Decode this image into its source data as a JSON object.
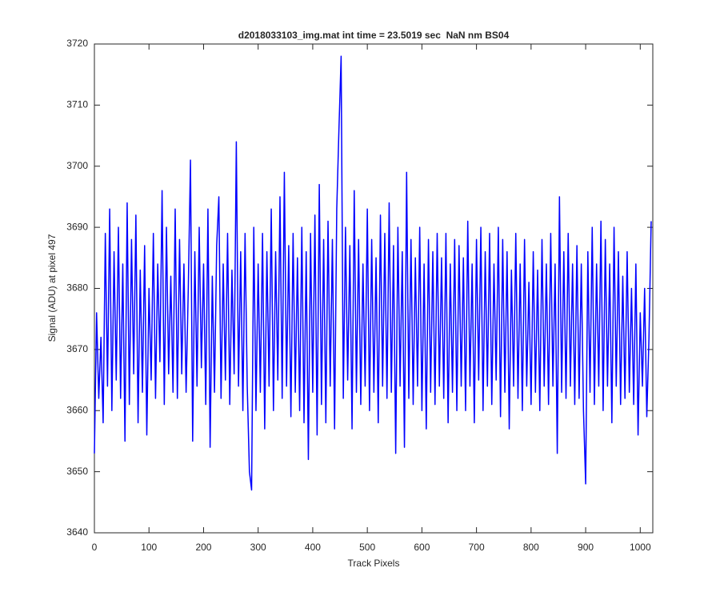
{
  "chart_data": {
    "type": "line",
    "title": "d2018033103_img.mat int time = 23.5019 sec  NaN nm BS04",
    "xlabel": "Track Pixels",
    "ylabel": "Signal (ADU) at pixel 497",
    "color": "#0000ff",
    "x": [
      0,
      4,
      8,
      12,
      16,
      20,
      24,
      28,
      32,
      36,
      40,
      44,
      48,
      52,
      56,
      60,
      64,
      68,
      72,
      76,
      80,
      84,
      88,
      92,
      96,
      100,
      104,
      108,
      112,
      116,
      120,
      124,
      128,
      132,
      136,
      140,
      144,
      148,
      152,
      156,
      160,
      164,
      168,
      172,
      176,
      180,
      184,
      188,
      192,
      196,
      200,
      204,
      208,
      212,
      216,
      220,
      224,
      228,
      232,
      236,
      240,
      244,
      248,
      252,
      256,
      260,
      264,
      268,
      272,
      276,
      280,
      284,
      288,
      292,
      296,
      300,
      304,
      308,
      312,
      316,
      320,
      324,
      328,
      332,
      336,
      340,
      344,
      348,
      352,
      356,
      360,
      364,
      368,
      372,
      376,
      380,
      384,
      388,
      392,
      396,
      400,
      404,
      408,
      412,
      416,
      420,
      424,
      428,
      432,
      436,
      440,
      444,
      448,
      452,
      456,
      460,
      464,
      468,
      472,
      476,
      480,
      484,
      488,
      492,
      496,
      500,
      504,
      508,
      512,
      516,
      520,
      524,
      528,
      532,
      536,
      540,
      544,
      548,
      552,
      556,
      560,
      564,
      568,
      572,
      576,
      580,
      584,
      588,
      592,
      596,
      600,
      604,
      608,
      612,
      616,
      620,
      624,
      628,
      632,
      636,
      640,
      644,
      648,
      652,
      656,
      660,
      664,
      668,
      672,
      676,
      680,
      684,
      688,
      692,
      696,
      700,
      704,
      708,
      712,
      716,
      720,
      724,
      728,
      732,
      736,
      740,
      744,
      748,
      752,
      756,
      760,
      764,
      768,
      772,
      776,
      780,
      784,
      788,
      792,
      796,
      800,
      804,
      808,
      812,
      816,
      820,
      824,
      828,
      832,
      836,
      840,
      844,
      848,
      852,
      856,
      860,
      864,
      868,
      872,
      876,
      880,
      884,
      888,
      892,
      896,
      900,
      904,
      908,
      912,
      916,
      920,
      924,
      928,
      932,
      936,
      940,
      944,
      948,
      952,
      956,
      960,
      964,
      968,
      972,
      976,
      980,
      984,
      988,
      992,
      996,
      1000,
      1004,
      1008,
      1012,
      1016,
      1020
    ],
    "values": [
      3653,
      3676,
      3662,
      3672,
      3658,
      3689,
      3664,
      3693,
      3660,
      3686,
      3665,
      3690,
      3662,
      3684,
      3655,
      3694,
      3661,
      3688,
      3666,
      3692,
      3658,
      3683,
      3663,
      3687,
      3656,
      3680,
      3665,
      3689,
      3662,
      3684,
      3668,
      3696,
      3661,
      3690,
      3666,
      3682,
      3663,
      3693,
      3662,
      3688,
      3666,
      3684,
      3663,
      3680,
      3701,
      3655,
      3686,
      3664,
      3690,
      3667,
      3684,
      3661,
      3693,
      3654,
      3682,
      3663,
      3687,
      3695,
      3662,
      3684,
      3665,
      3689,
      3661,
      3683,
      3666,
      3704,
      3664,
      3686,
      3660,
      3689,
      3664,
      3650,
      3647,
      3690,
      3660,
      3684,
      3663,
      3689,
      3657,
      3686,
      3664,
      3693,
      3660,
      3686,
      3665,
      3695,
      3662,
      3699,
      3664,
      3687,
      3659,
      3689,
      3663,
      3685,
      3660,
      3690,
      3658,
      3686,
      3652,
      3689,
      3663,
      3692,
      3656,
      3697,
      3661,
      3688,
      3658,
      3691,
      3664,
      3688,
      3657,
      3693,
      3706,
      3718,
      3662,
      3690,
      3665,
      3687,
      3657,
      3696,
      3663,
      3688,
      3661,
      3684,
      3664,
      3693,
      3660,
      3688,
      3663,
      3685,
      3658,
      3692,
      3664,
      3689,
      3662,
      3694,
      3663,
      3687,
      3653,
      3690,
      3664,
      3686,
      3654,
      3699,
      3662,
      3688,
      3661,
      3685,
      3664,
      3690,
      3660,
      3684,
      3657,
      3688,
      3663,
      3686,
      3661,
      3689,
      3664,
      3685,
      3662,
      3689,
      3658,
      3684,
      3663,
      3688,
      3660,
      3687,
      3664,
      3685,
      3660,
      3691,
      3664,
      3684,
      3658,
      3688,
      3665,
      3690,
      3660,
      3686,
      3664,
      3689,
      3661,
      3684,
      3665,
      3690,
      3659,
      3688,
      3663,
      3686,
      3657,
      3683,
      3664,
      3689,
      3662,
      3684,
      3660,
      3688,
      3664,
      3681,
      3661,
      3686,
      3663,
      3683,
      3660,
      3688,
      3664,
      3684,
      3661,
      3689,
      3664,
      3684,
      3653,
      3695,
      3663,
      3686,
      3662,
      3689,
      3664,
      3684,
      3661,
      3687,
      3662,
      3684,
      3660,
      3648,
      3686,
      3663,
      3690,
      3661,
      3684,
      3664,
      3691,
      3660,
      3688,
      3664,
      3684,
      3658,
      3690,
      3664,
      3686,
      3661,
      3682,
      3662,
      3686,
      3663,
      3680,
      3661,
      3684,
      3656,
      3676,
      3664,
      3680,
      3659,
      3672,
      3691
    ],
    "xlim": [
      0,
      1023
    ],
    "xticks": [
      0,
      100,
      200,
      300,
      400,
      500,
      600,
      700,
      800,
      900,
      1000
    ],
    "ylim": [
      3640,
      3720
    ],
    "yticks": [
      3640,
      3650,
      3660,
      3670,
      3680,
      3690,
      3700,
      3710,
      3720
    ],
    "grid": false
  }
}
